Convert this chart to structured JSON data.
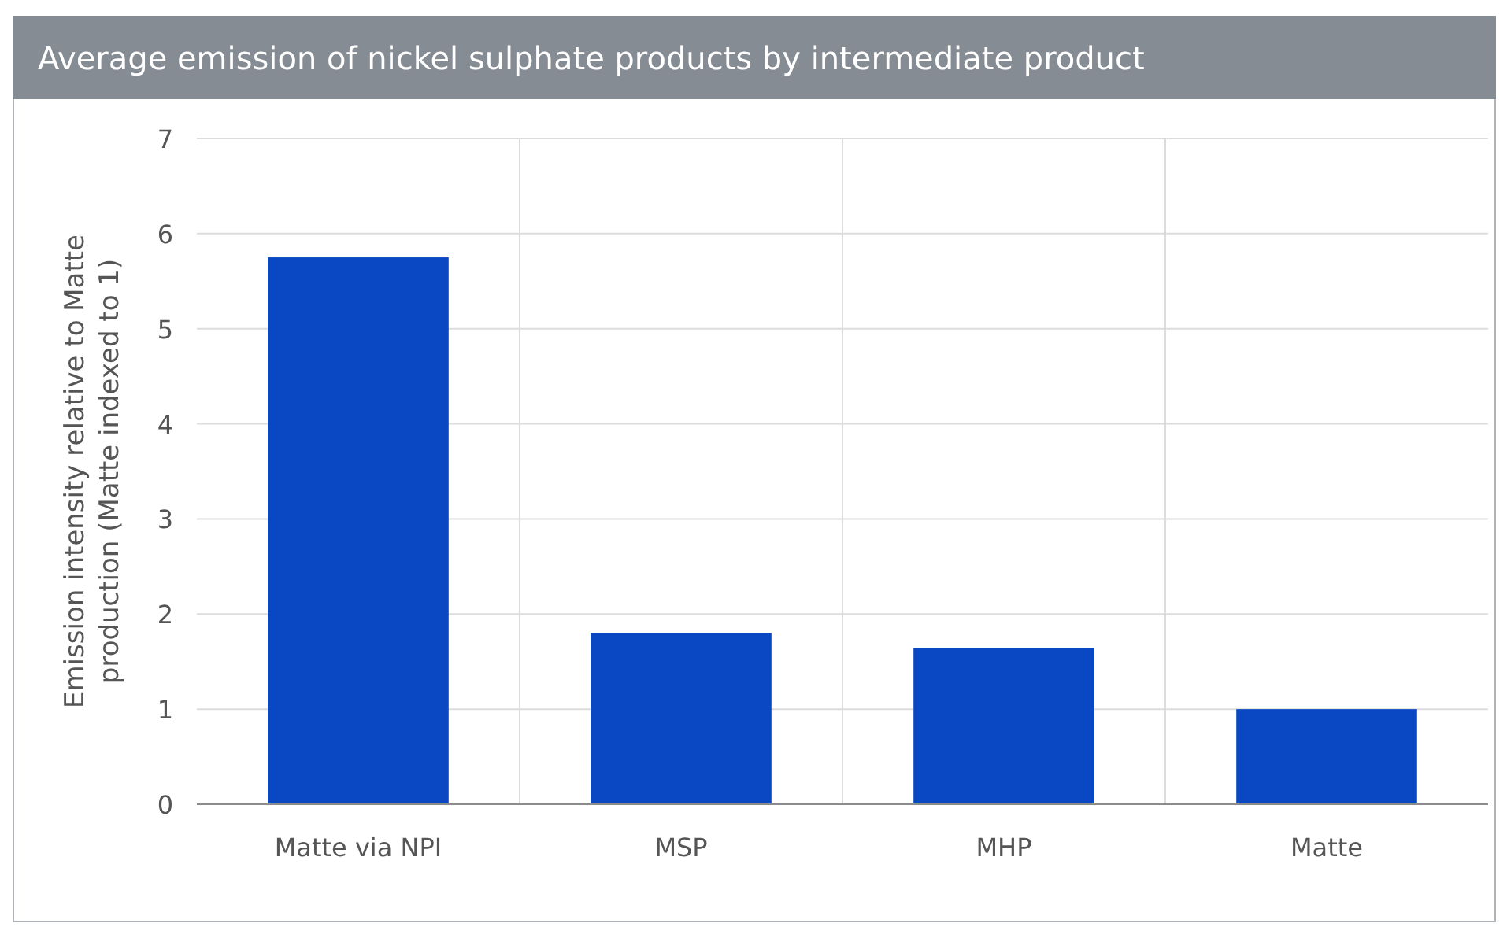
{
  "chart_data": {
    "type": "bar",
    "title": "Average emission of nickel sulphate products by intermediate product",
    "ylabel": "Emission intensity relative to Matte\nproduction (Matte indexed to 1)",
    "categories": [
      "Matte via NPI",
      "MSP",
      "MHP",
      "Matte"
    ],
    "values": [
      5.75,
      1.8,
      1.64,
      1.0
    ],
    "color": "#0a47c2",
    "ylim": [
      0,
      7
    ],
    "yticks": [
      0,
      1,
      2,
      3,
      4,
      5,
      6,
      7
    ],
    "grid": true
  }
}
